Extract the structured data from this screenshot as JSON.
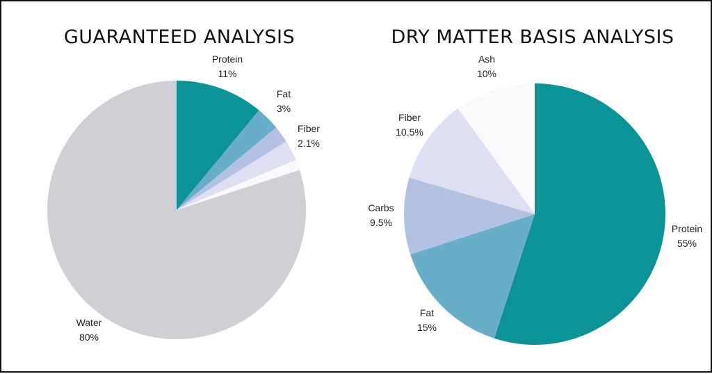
{
  "chart_data": [
    {
      "type": "pie",
      "title": "GUARANTEED ANALYSIS",
      "slices": [
        {
          "label": "Protein",
          "value": 11,
          "value_label": "11%",
          "color": "#0b9398"
        },
        {
          "label": "Fat",
          "value": 3,
          "value_label": "3%",
          "color": "#69aec8"
        },
        {
          "label": "Fiber",
          "value": 2.1,
          "value_label": "2.1%",
          "color": "#b3c2e2"
        },
        {
          "label": "",
          "value": 2.6,
          "value_label": "",
          "color": "#dfdff3"
        },
        {
          "label": "",
          "value": 1.3,
          "value_label": "",
          "color": "#fbf8fc"
        },
        {
          "label": "Water",
          "value": 80,
          "value_label": "80%",
          "color": "#d0cfd3"
        }
      ]
    },
    {
      "type": "pie",
      "title": "DRY MATTER BASIS ANALYSIS",
      "slices": [
        {
          "label": "Protein",
          "value": 55,
          "value_label": "55%",
          "color": "#0b9398"
        },
        {
          "label": "Fat",
          "value": 15,
          "value_label": "15%",
          "color": "#69aec8"
        },
        {
          "label": "Carbs",
          "value": 9.5,
          "value_label": "9.5%",
          "color": "#b3c2e2"
        },
        {
          "label": "Fiber",
          "value": 10.5,
          "value_label": "10.5%",
          "color": "#dfdff3"
        },
        {
          "label": "Ash",
          "value": 10,
          "value_label": "10%",
          "color": "#fbf8fc"
        }
      ]
    }
  ]
}
